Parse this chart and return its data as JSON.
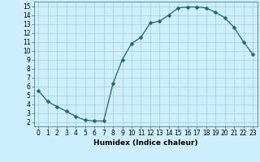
{
  "x": [
    0,
    1,
    2,
    3,
    4,
    5,
    6,
    7,
    8,
    9,
    10,
    11,
    12,
    13,
    14,
    15,
    16,
    17,
    18,
    19,
    20,
    21,
    22,
    23
  ],
  "y": [
    5.5,
    4.3,
    3.7,
    3.2,
    2.6,
    2.2,
    2.1,
    2.1,
    6.3,
    9.0,
    10.8,
    11.5,
    13.1,
    13.3,
    14.0,
    14.8,
    14.9,
    14.9,
    14.8,
    14.3,
    13.7,
    12.6,
    11.0,
    9.6
  ],
  "line_color": "#1f6b5c",
  "marker": "D",
  "marker_size": 2.5,
  "bg_color": "#cceeff",
  "grid_color": "#aacccc",
  "xlabel": "Humidex (Indice chaleur)",
  "xlim": [
    -0.5,
    23.5
  ],
  "ylim": [
    1.5,
    15.5
  ],
  "yticks": [
    2,
    3,
    4,
    5,
    6,
    7,
    8,
    9,
    10,
    11,
    12,
    13,
    14,
    15
  ],
  "xticks": [
    0,
    1,
    2,
    3,
    4,
    5,
    6,
    7,
    8,
    9,
    10,
    11,
    12,
    13,
    14,
    15,
    16,
    17,
    18,
    19,
    20,
    21,
    22,
    23
  ],
  "label_fontsize": 6.5,
  "tick_fontsize": 5.5
}
